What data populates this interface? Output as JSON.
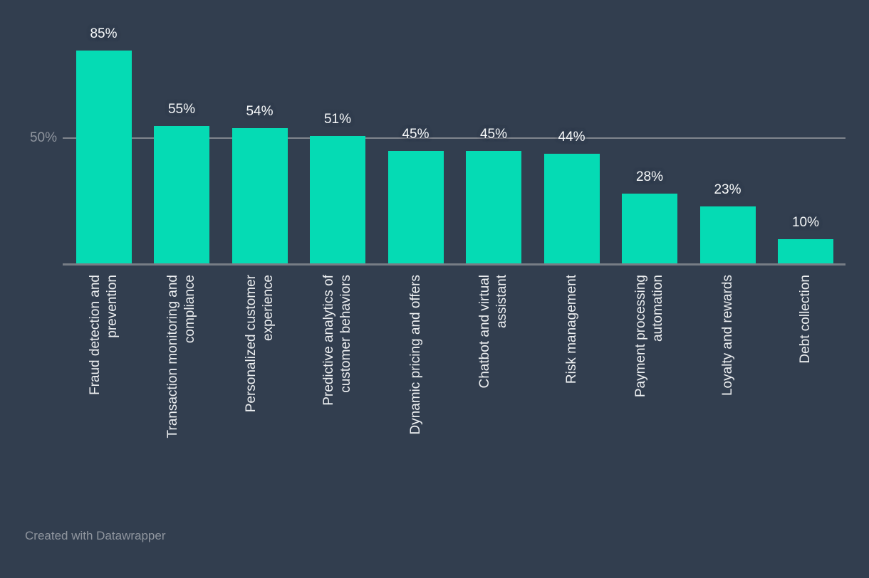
{
  "chart": {
    "background_color": "#323E4F",
    "bar_color": "#05DBB4",
    "axis_line_color": "#777D85",
    "gridline_color": "#80858D",
    "tick_label_color": "#8F959E",
    "value_label_color": "#F7F9FA",
    "category_label_color": "#EDEFF1"
  },
  "chart_data": {
    "type": "bar",
    "title": "",
    "xlabel": "",
    "ylabel": "",
    "unit": "%",
    "categories": [
      "Fraud detection and prevention",
      "Transaction monitoring and compliance",
      "Personalized customer experience",
      "Predictive analytics of customer behaviors",
      "Dynamic pricing and offers",
      "Chatbot and virtual assistant",
      "Risk management",
      "Payment processing automation",
      "Loyalty and rewards",
      "Debt collection"
    ],
    "category_lines": [
      [
        "Fraud detection and",
        "prevention"
      ],
      [
        "Transaction monitoring and",
        "compliance"
      ],
      [
        "Personalized customer",
        "experience"
      ],
      [
        "Predictive analytics of",
        "customer behaviors"
      ],
      [
        "Dynamic pricing and offers"
      ],
      [
        "Chatbot and virtual",
        "assistant"
      ],
      [
        "Risk management"
      ],
      [
        "Payment processing",
        "automation"
      ],
      [
        "Loyalty and rewards"
      ],
      [
        "Debt collection"
      ]
    ],
    "values": [
      85,
      55,
      54,
      51,
      45,
      45,
      44,
      28,
      23,
      10
    ],
    "value_labels": [
      "85%",
      "55%",
      "54%",
      "51%",
      "45%",
      "45%",
      "44%",
      "28%",
      "23%",
      "10%"
    ],
    "ylim": [
      0,
      85
    ],
    "y_ticks": [
      {
        "value": 50,
        "label": "50%"
      }
    ],
    "gridlines": [
      50
    ],
    "legend": "none",
    "bar_orientation": "vertical",
    "category_label_rotation": -90
  },
  "footer": {
    "credit": "Created with Datawrapper"
  }
}
